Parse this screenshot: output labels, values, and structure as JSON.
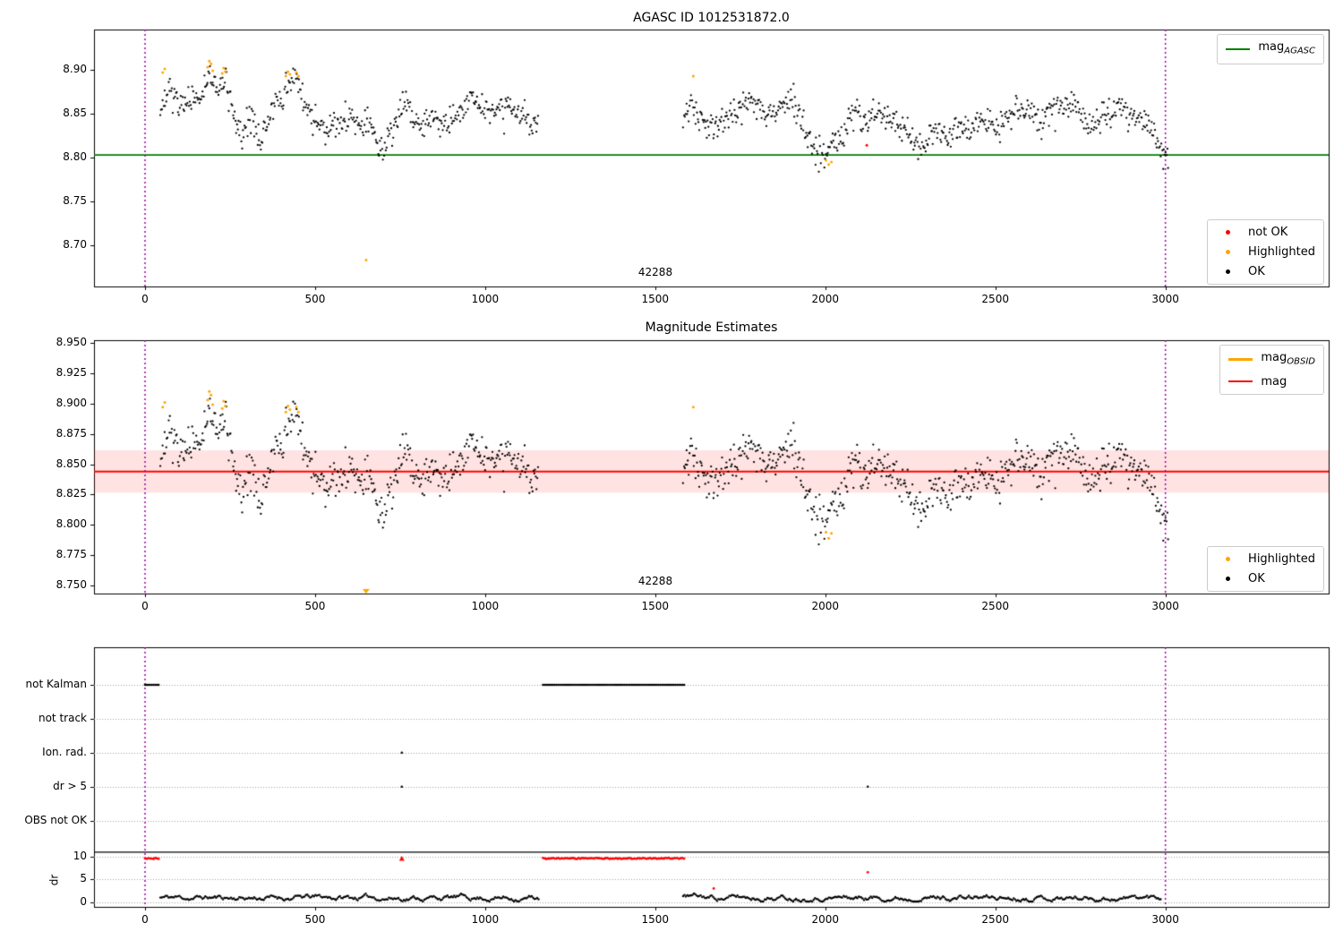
{
  "figure": {
    "bg": "#ffffff"
  },
  "colors": {
    "ok": "#000000",
    "highlighted": "#ffa500",
    "not_ok": "#ff0000",
    "mag_agasc_line": "#007f00",
    "mag_line": "#ff0000",
    "mag_band_fill": "rgba(255,40,30,0.13)",
    "obsid_line": "#ffa500",
    "vline": "#990099",
    "grid_dotted": "#a0a0a0",
    "frame": "#000000",
    "dr_threshold_line": "#000000"
  },
  "plot1": {
    "title": "AGASC ID 1012531872.0",
    "obsid_label": "42288",
    "legend_line": {
      "main": "mag",
      "sub": "AGASC"
    },
    "legend_markers": [
      {
        "label": "not OK",
        "color": "#ff0000"
      },
      {
        "label": "Highlighted",
        "color": "#ffa500"
      },
      {
        "label": "OK",
        "color": "#000000"
      }
    ]
  },
  "plot2": {
    "title": "Magnitude Estimates",
    "obsid_label": "42288",
    "legend_lines": [
      {
        "main": "mag",
        "sub": "OBSID",
        "color": "#ffa500"
      },
      {
        "main": "mag",
        "sub": "",
        "color": "#ff0000"
      }
    ],
    "legend_markers": [
      {
        "label": "Highlighted",
        "color": "#ffa500"
      },
      {
        "label": "OK",
        "color": "#000000"
      }
    ]
  },
  "plot3": {
    "row_labels": [
      "not Kalman",
      "not track",
      "Ion. rad.",
      "dr > 5",
      "OBS not OK"
    ],
    "dr_tick_labels": [
      "10",
      "5",
      "0"
    ],
    "axis_label": "dr"
  },
  "chart_data": [
    {
      "type": "scatter",
      "title": "AGASC ID 1012531872.0",
      "xlabel": "",
      "ylabel": "",
      "xlim": [
        -150,
        3480
      ],
      "ylim": [
        8.653,
        8.946
      ],
      "xticks": [
        0,
        500,
        1000,
        1500,
        2000,
        2500,
        3000
      ],
      "yticks": [
        8.9,
        8.85,
        8.8,
        8.75,
        8.7
      ],
      "legend": [
        "mag_AGASC",
        "not OK",
        "Highlighted",
        "OK"
      ],
      "mag_agasc": 8.803,
      "vlines": [
        0,
        3000
      ],
      "obsid_annotation": {
        "text": "42288",
        "x": 1505
      },
      "point_step": 2.4,
      "noise_sigma": 0.0082,
      "seed": 7,
      "segments": [
        [
          45,
          1158
        ],
        [
          1582,
          3008
        ]
      ],
      "trend": [
        [
          45,
          8.852
        ],
        [
          60,
          8.868
        ],
        [
          75,
          8.875
        ],
        [
          95,
          8.862
        ],
        [
          115,
          8.855
        ],
        [
          135,
          8.862
        ],
        [
          150,
          8.87
        ],
        [
          165,
          8.868
        ],
        [
          180,
          8.882
        ],
        [
          192,
          8.896
        ],
        [
          200,
          8.886
        ],
        [
          212,
          8.876
        ],
        [
          225,
          8.886
        ],
        [
          235,
          8.892
        ],
        [
          245,
          8.868
        ],
        [
          258,
          8.845
        ],
        [
          270,
          8.838
        ],
        [
          285,
          8.826
        ],
        [
          300,
          8.836
        ],
        [
          315,
          8.842
        ],
        [
          330,
          8.826
        ],
        [
          345,
          8.82
        ],
        [
          360,
          8.838
        ],
        [
          375,
          8.855
        ],
        [
          390,
          8.866
        ],
        [
          405,
          8.864
        ],
        [
          420,
          8.88
        ],
        [
          432,
          8.888
        ],
        [
          445,
          8.885
        ],
        [
          458,
          8.88
        ],
        [
          470,
          8.86
        ],
        [
          485,
          8.848
        ],
        [
          500,
          8.845
        ],
        [
          515,
          8.84
        ],
        [
          530,
          8.83
        ],
        [
          545,
          8.836
        ],
        [
          560,
          8.834
        ],
        [
          575,
          8.84
        ],
        [
          590,
          8.846
        ],
        [
          605,
          8.847
        ],
        [
          620,
          8.838
        ],
        [
          635,
          8.832
        ],
        [
          650,
          8.838
        ],
        [
          665,
          8.842
        ],
        [
          680,
          8.82
        ],
        [
          695,
          8.812
        ],
        [
          710,
          8.814
        ],
        [
          725,
          8.83
        ],
        [
          740,
          8.845
        ],
        [
          755,
          8.86
        ],
        [
          770,
          8.864
        ],
        [
          785,
          8.852
        ],
        [
          800,
          8.838
        ],
        [
          815,
          8.833
        ],
        [
          830,
          8.84
        ],
        [
          845,
          8.846
        ],
        [
          860,
          8.842
        ],
        [
          875,
          8.835
        ],
        [
          890,
          8.838
        ],
        [
          905,
          8.842
        ],
        [
          920,
          8.852
        ],
        [
          935,
          8.86
        ],
        [
          950,
          8.872
        ],
        [
          962,
          8.875
        ],
        [
          975,
          8.867
        ],
        [
          990,
          8.858
        ],
        [
          1005,
          8.852
        ],
        [
          1020,
          8.85
        ],
        [
          1035,
          8.856
        ],
        [
          1050,
          8.857
        ],
        [
          1065,
          8.862
        ],
        [
          1080,
          8.858
        ],
        [
          1095,
          8.85
        ],
        [
          1110,
          8.848
        ],
        [
          1125,
          8.84
        ],
        [
          1140,
          8.836
        ],
        [
          1160,
          8.832
        ],
        [
          1580,
          8.842
        ],
        [
          1595,
          8.852
        ],
        [
          1610,
          8.862
        ],
        [
          1622,
          8.855
        ],
        [
          1635,
          8.846
        ],
        [
          1650,
          8.838
        ],
        [
          1665,
          8.832
        ],
        [
          1680,
          8.84
        ],
        [
          1695,
          8.845
        ],
        [
          1710,
          8.842
        ],
        [
          1725,
          8.848
        ],
        [
          1740,
          8.852
        ],
        [
          1755,
          8.856
        ],
        [
          1770,
          8.866
        ],
        [
          1782,
          8.873
        ],
        [
          1795,
          8.862
        ],
        [
          1810,
          8.852
        ],
        [
          1825,
          8.845
        ],
        [
          1840,
          8.848
        ],
        [
          1855,
          8.856
        ],
        [
          1870,
          8.858
        ],
        [
          1885,
          8.866
        ],
        [
          1900,
          8.872
        ],
        [
          1912,
          8.86
        ],
        [
          1925,
          8.845
        ],
        [
          1940,
          8.832
        ],
        [
          1955,
          8.82
        ],
        [
          1970,
          8.81
        ],
        [
          1985,
          8.804
        ],
        [
          2000,
          8.802
        ],
        [
          2015,
          8.81
        ],
        [
          2030,
          8.82
        ],
        [
          2045,
          8.828
        ],
        [
          2060,
          8.835
        ],
        [
          2075,
          8.845
        ],
        [
          2090,
          8.852
        ],
        [
          2105,
          8.85
        ],
        [
          2120,
          8.842
        ],
        [
          2135,
          8.846
        ],
        [
          2150,
          8.85
        ],
        [
          2165,
          8.852
        ],
        [
          2180,
          8.85
        ],
        [
          2195,
          8.845
        ],
        [
          2210,
          8.84
        ],
        [
          2225,
          8.832
        ],
        [
          2240,
          8.828
        ],
        [
          2255,
          8.822
        ],
        [
          2270,
          8.818
        ],
        [
          2285,
          8.812
        ],
        [
          2300,
          8.818
        ],
        [
          2315,
          8.826
        ],
        [
          2330,
          8.832
        ],
        [
          2345,
          8.828
        ],
        [
          2360,
          8.826
        ],
        [
          2375,
          8.832
        ],
        [
          2390,
          8.836
        ],
        [
          2405,
          8.834
        ],
        [
          2420,
          8.83
        ],
        [
          2435,
          8.832
        ],
        [
          2450,
          8.838
        ],
        [
          2465,
          8.84
        ],
        [
          2480,
          8.842
        ],
        [
          2495,
          8.836
        ],
        [
          2510,
          8.838
        ],
        [
          2525,
          8.84
        ],
        [
          2540,
          8.848
        ],
        [
          2555,
          8.852
        ],
        [
          2570,
          8.856
        ],
        [
          2585,
          8.85
        ],
        [
          2600,
          8.855
        ],
        [
          2615,
          8.848
        ],
        [
          2630,
          8.84
        ],
        [
          2645,
          8.845
        ],
        [
          2660,
          8.852
        ],
        [
          2675,
          8.856
        ],
        [
          2690,
          8.858
        ],
        [
          2705,
          8.862
        ],
        [
          2720,
          8.865
        ],
        [
          2735,
          8.858
        ],
        [
          2750,
          8.85
        ],
        [
          2765,
          8.845
        ],
        [
          2780,
          8.84
        ],
        [
          2795,
          8.842
        ],
        [
          2810,
          8.848
        ],
        [
          2825,
          8.852
        ],
        [
          2840,
          8.855
        ],
        [
          2855,
          8.858
        ],
        [
          2870,
          8.856
        ],
        [
          2885,
          8.852
        ],
        [
          2900,
          8.85
        ],
        [
          2915,
          8.845
        ],
        [
          2930,
          8.842
        ],
        [
          2945,
          8.838
        ],
        [
          2960,
          8.828
        ],
        [
          2975,
          8.82
        ],
        [
          2990,
          8.81
        ],
        [
          3005,
          8.804
        ]
      ],
      "highlighted": [
        [
          52,
          8.897
        ],
        [
          58,
          8.901
        ],
        [
          184,
          8.903
        ],
        [
          189,
          8.91
        ],
        [
          194,
          8.907
        ],
        [
          199,
          8.899
        ],
        [
          227,
          8.896
        ],
        [
          231,
          8.902
        ],
        [
          236,
          8.898
        ],
        [
          414,
          8.893
        ],
        [
          420,
          8.898
        ],
        [
          426,
          8.895
        ],
        [
          445,
          8.897
        ],
        [
          451,
          8.893
        ],
        [
          650,
          8.683
        ],
        [
          1612,
          8.893
        ],
        [
          2002,
          8.797
        ],
        [
          2010,
          8.792
        ],
        [
          2018,
          8.795
        ]
      ],
      "not_ok": [
        [
          2122,
          8.814
        ]
      ]
    },
    {
      "type": "scatter",
      "title": "Magnitude Estimates",
      "xlabel": "",
      "ylabel": "",
      "xlim": [
        -150,
        3480
      ],
      "ylim": [
        8.7434,
        8.9522
      ],
      "xticks": [
        0,
        500,
        1000,
        1500,
        2000,
        2500,
        3000
      ],
      "yticks": [
        8.95,
        8.925,
        8.9,
        8.875,
        8.85,
        8.825,
        8.8,
        8.775,
        8.75
      ],
      "legend": [
        "mag_OBSID",
        "mag",
        "Highlighted",
        "OK"
      ],
      "mag": 8.844,
      "mag_band": [
        8.8265,
        8.8615
      ],
      "vlines": [
        0,
        3000
      ],
      "obsid_annotation": {
        "text": "42288",
        "x": 1505
      },
      "point_step": 2.4,
      "noise_sigma": 0.0082,
      "seed": 7,
      "segments": [
        [
          45,
          1158
        ],
        [
          1582,
          3008
        ]
      ],
      "trend_ref": 0,
      "highlighted": [
        [
          52,
          8.897
        ],
        [
          58,
          8.901
        ],
        [
          184,
          8.903
        ],
        [
          189,
          8.91
        ],
        [
          194,
          8.907
        ],
        [
          199,
          8.899
        ],
        [
          227,
          8.896
        ],
        [
          231,
          8.902
        ],
        [
          236,
          8.898
        ],
        [
          414,
          8.893
        ],
        [
          420,
          8.898
        ],
        [
          426,
          8.895
        ],
        [
          445,
          8.897
        ],
        [
          451,
          8.893
        ],
        [
          1612,
          8.897
        ],
        [
          2002,
          8.794
        ],
        [
          2010,
          8.789
        ],
        [
          2018,
          8.793
        ]
      ],
      "clipped_low": [
        {
          "x": 650,
          "marker": "triangle-down"
        }
      ],
      "not_ok": []
    },
    {
      "type": "flags-dr",
      "xlabel": "",
      "ylabel": "dr",
      "xlim": [
        -150,
        3480
      ],
      "ulim": [
        -1.05,
        56.3
      ],
      "xticks": [
        0,
        500,
        1000,
        1500,
        2000,
        2500,
        3000
      ],
      "rows": [
        {
          "label": "not Kalman",
          "u": 48
        },
        {
          "label": "not track",
          "u": 40.5
        },
        {
          "label": "Ion. rad.",
          "u": 33
        },
        {
          "label": "dr > 5",
          "u": 25.5
        },
        {
          "label": "OBS not OK",
          "u": 18
        }
      ],
      "dr_ticks": [
        {
          "label": "10",
          "u": 10
        },
        {
          "label": "5",
          "u": 5
        },
        {
          "label": "0",
          "u": 0
        }
      ],
      "dr_threshold_u": 11.05,
      "vlines": [
        0,
        3000
      ],
      "flag_segments": [
        {
          "row": "not Kalman",
          "ranges": [
            [
              0,
              42
            ],
            [
              1170,
              1585
            ]
          ]
        }
      ],
      "flag_points": [
        {
          "row": "Ion. rad.",
          "x": [
            755
          ]
        },
        {
          "row": "dr > 5",
          "x": [
            755,
            2125
          ]
        }
      ],
      "dr_red_value": 9.65,
      "dr_red_segments": [
        [
          0,
          42
        ],
        [
          1170,
          1585
        ]
      ],
      "dr_red_triangle": [
        755,
        9.65
      ],
      "dr_red_points": [
        [
          1672,
          3.0
        ],
        [
          2125,
          6.6
        ]
      ],
      "dr_trace_segments": [
        [
          45,
          1158
        ],
        [
          1582,
          2988
        ]
      ],
      "dr_trace_baseline": 1.0,
      "seed": 11
    }
  ]
}
